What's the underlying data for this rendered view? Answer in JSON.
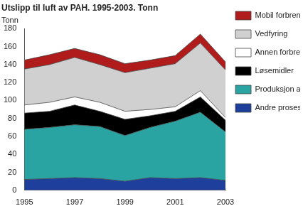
{
  "chart_data": {
    "type": "area",
    "title": "Utslipp til luft av PAH. 1995-2003. Tonn",
    "ylabel": "Tonn",
    "categories": [
      "1995",
      null,
      "1997",
      null,
      "1999",
      null,
      "2001",
      null,
      "2003"
    ],
    "stacked": true,
    "grid": false,
    "legend": "right",
    "ylim": [
      0,
      180
    ],
    "yticks": [
      0,
      20,
      40,
      60,
      80,
      100,
      120,
      140,
      160,
      180
    ],
    "series": [
      {
        "name": "Andre prosessutslipp",
        "color": "#1f3f9c",
        "values": [
          12,
          13,
          14,
          13,
          10,
          14,
          13,
          14,
          11
        ]
      },
      {
        "name": "Produksjon av aluminium",
        "color": "#2aa3a3",
        "values": [
          56,
          57,
          59,
          58,
          51,
          56,
          64,
          73,
          54
        ]
      },
      {
        "name": "Løsemidler",
        "color": "#000000",
        "values": [
          18,
          18,
          22,
          17,
          18,
          13,
          11,
          17,
          13
        ]
      },
      {
        "name": "Annen forbrenning",
        "color": "#ffffff",
        "values": [
          9,
          10,
          9,
          10,
          9,
          7,
          5,
          7,
          3
        ]
      },
      {
        "name": "Vedfyring",
        "color": "#d0d0d0",
        "values": [
          40,
          42,
          44,
          42,
          43,
          46,
          48,
          53,
          53
        ]
      },
      {
        "name": "Mobil forbrenning",
        "color": "#b01c1c",
        "values": [
          10,
          11,
          10,
          11,
          10,
          9,
          9,
          10,
          9
        ]
      }
    ]
  }
}
